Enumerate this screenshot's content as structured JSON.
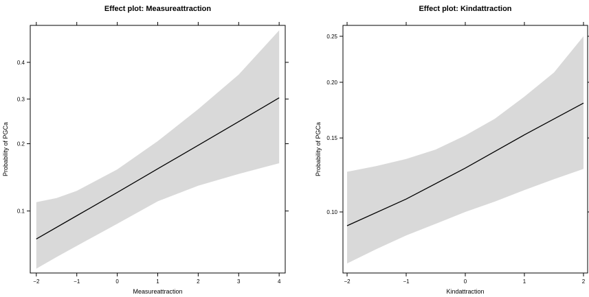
{
  "chart_data": [
    {
      "type": "line",
      "title": "Effect plot:  Measureattraction",
      "xlabel": "Measureattraction",
      "ylabel": "Probability of PGCa",
      "y_scale": "logit",
      "xlim": [
        -2.15,
        4.15
      ],
      "ylim": [
        0.05,
        0.51
      ],
      "x_ticks": [
        -2,
        -1,
        0,
        1,
        2,
        3,
        4
      ],
      "x_tick_labels": [
        "−2",
        "−1",
        "0",
        "1",
        "2",
        "3",
        "4"
      ],
      "y_ticks": [
        0.1,
        0.2,
        0.3,
        0.4
      ],
      "y_tick_labels": [
        "0.1",
        "0.2",
        "0.3",
        "0.4"
      ],
      "fill_color": "#d9d9d9",
      "line_color": "#000000",
      "series": [
        {
          "role": "fit",
          "x": [
            -2,
            -1,
            0,
            1,
            2,
            3,
            4
          ],
          "y": [
            0.0735,
            0.095,
            0.122,
            0.156,
            0.197,
            0.246,
            0.303
          ]
        },
        {
          "role": "lower",
          "x": [
            -2,
            -1.5,
            -1,
            0,
            1,
            2,
            3,
            4
          ],
          "y": [
            0.0525,
            0.06,
            0.068,
            0.087,
            0.111,
            0.131,
            0.148,
            0.165
          ]
        },
        {
          "role": "upper",
          "x": [
            -2,
            -1.5,
            -1,
            0,
            1,
            2,
            3,
            4
          ],
          "y": [
            0.11,
            0.115,
            0.124,
            0.155,
            0.205,
            0.275,
            0.365,
            0.495
          ]
        }
      ]
    },
    {
      "type": "line",
      "title": "Effect plot:  Kindattraction",
      "xlabel": "Kindattraction",
      "ylabel": "Probability of PGCa",
      "y_scale": "logit",
      "xlim": [
        -2.07,
        2.07
      ],
      "ylim": [
        0.0705,
        0.263
      ],
      "x_ticks": [
        -2,
        -1,
        0,
        1,
        2
      ],
      "x_tick_labels": [
        "−2",
        "−1",
        "0",
        "1",
        "2"
      ],
      "y_ticks": [
        0.1,
        0.15,
        0.2,
        0.25
      ],
      "y_tick_labels": [
        "0.10",
        "0.15",
        "0.20",
        "0.25"
      ],
      "fill_color": "#d9d9d9",
      "line_color": "#000000",
      "series": [
        {
          "role": "fit",
          "x": [
            -2,
            -1,
            0,
            1,
            2
          ],
          "y": [
            0.0925,
            0.1075,
            0.1275,
            0.1525,
            0.18
          ]
        },
        {
          "role": "lower",
          "x": [
            -2,
            -1.5,
            -1,
            -0.5,
            0,
            0.5,
            1,
            1.5,
            2
          ],
          "y": [
            0.0745,
            0.081,
            0.0875,
            0.0935,
            0.1,
            0.106,
            0.113,
            0.12,
            0.127
          ]
        },
        {
          "role": "upper",
          "x": [
            -2,
            -1.5,
            -1,
            -0.5,
            0,
            0.5,
            1,
            1.5,
            2
          ],
          "y": [
            0.125,
            0.129,
            0.134,
            0.141,
            0.152,
            0.166,
            0.186,
            0.21,
            0.25
          ]
        }
      ]
    }
  ]
}
